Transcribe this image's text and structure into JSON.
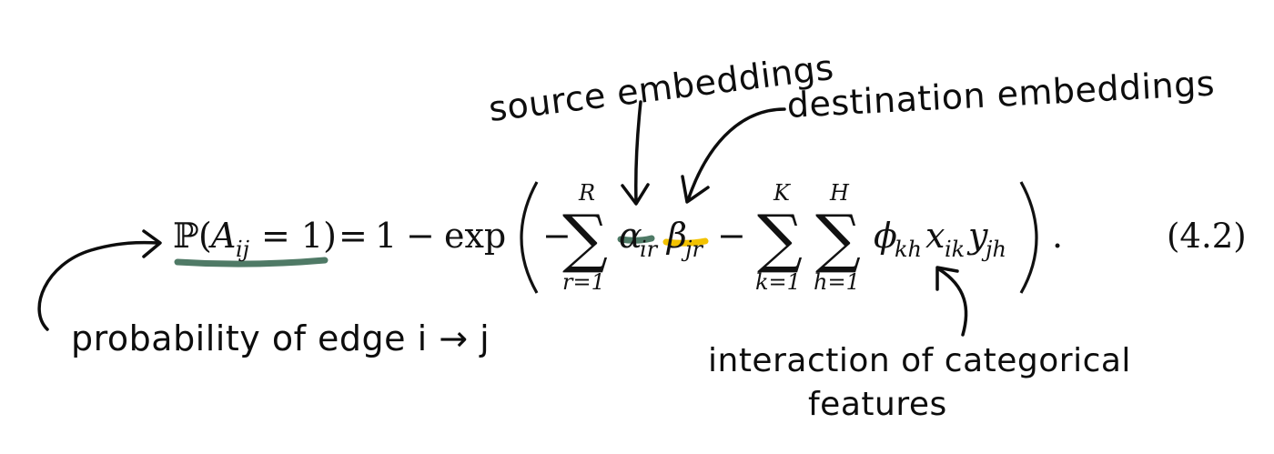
{
  "annotations": {
    "source": "source embeddings",
    "destination": "destination embeddings",
    "probability": "probability of edge i → j",
    "interaction_line1": "interaction of categorical",
    "interaction_line2": "features"
  },
  "equation": {
    "lhs_P": "ℙ",
    "lhs_A": "A",
    "lhs_A_sub": "ij",
    "lhs_eq1": "= 1)",
    "eq_sign": "=",
    "one": "1",
    "minus": "−",
    "exp": "exp",
    "sum_symbol": "∑",
    "sum1_upper": "R",
    "sum1_lower": "r=1",
    "alpha": "α",
    "alpha_sub": "ir",
    "beta": "β",
    "beta_sub": "jr",
    "sum2_upper": "K",
    "sum2_lower": "k=1",
    "sum3_upper": "H",
    "sum3_lower": "h=1",
    "phi": "ϕ",
    "phi_sub": "kh",
    "x": "x",
    "x_sub": "ik",
    "y": "y",
    "y_sub": "jh",
    "period": ".",
    "number": "(4.2)"
  },
  "colors": {
    "green_underline": "#4f7a66",
    "yellow_underline": "#f2c200",
    "ink": "#0d0d0d"
  }
}
